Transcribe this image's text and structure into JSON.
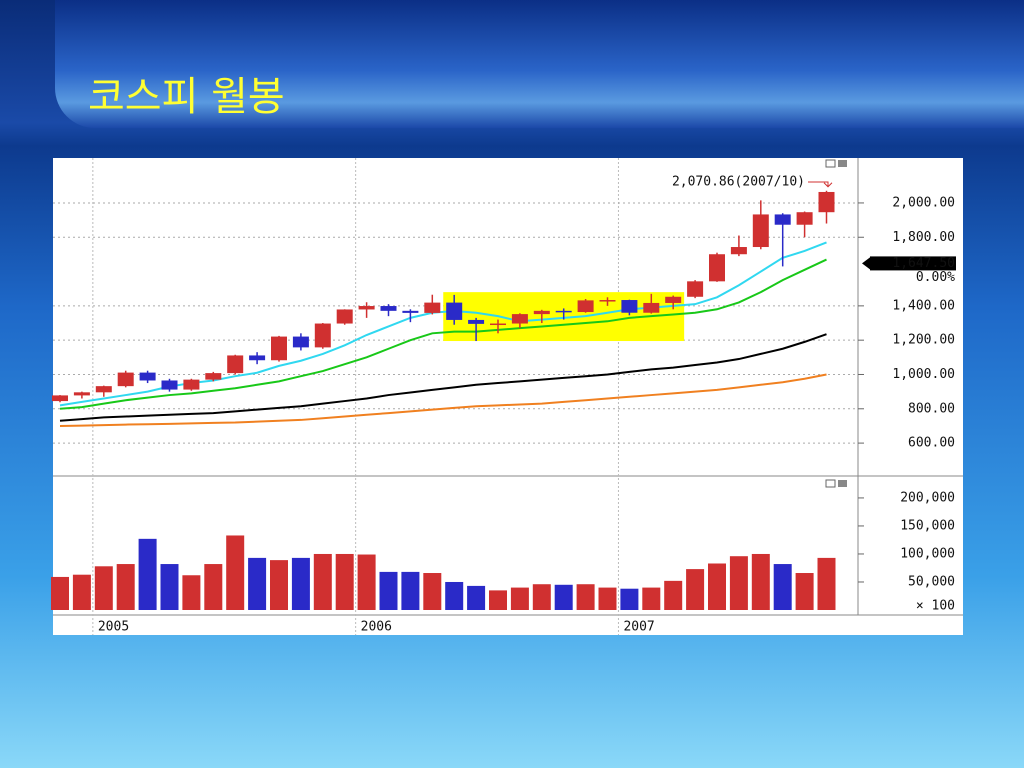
{
  "slide_title": "코스피 월봉",
  "chart_data": [
    {
      "type": "candlestick",
      "categories": [
        null,
        null,
        "2005",
        null,
        null,
        null,
        null,
        null,
        null,
        null,
        null,
        null,
        null,
        null,
        "2006",
        null,
        null,
        null,
        null,
        null,
        null,
        null,
        null,
        null,
        null,
        null,
        "2007",
        null,
        null,
        null,
        null,
        null,
        null,
        null,
        null,
        null
      ],
      "open": [
        845,
        878,
        896,
        932,
        1011,
        965,
        912,
        970,
        1008,
        1111,
        1083,
        1221,
        1158,
        1297,
        1379,
        1399,
        1371,
        1359,
        1419,
        1318,
        1295,
        1297,
        1352,
        1371,
        1364,
        1432,
        1434,
        1360,
        1417,
        1453,
        1543,
        1701,
        1743,
        1933,
        1873,
        1946
      ],
      "high": [
        880,
        900,
        935,
        1022,
        1022,
        975,
        975,
        1015,
        1115,
        1130,
        1225,
        1240,
        1300,
        1380,
        1421,
        1410,
        1380,
        1465,
        1464,
        1330,
        1320,
        1357,
        1377,
        1385,
        1440,
        1450,
        1436,
        1470,
        1460,
        1550,
        1710,
        1810,
        2015,
        1940,
        1950,
        2070.86
      ],
      "low": [
        838,
        860,
        870,
        925,
        950,
        900,
        905,
        960,
        1000,
        1060,
        1075,
        1140,
        1150,
        1290,
        1330,
        1340,
        1305,
        1350,
        1290,
        1195,
        1240,
        1270,
        1300,
        1320,
        1360,
        1400,
        1345,
        1355,
        1380,
        1445,
        1540,
        1690,
        1730,
        1630,
        1800,
        1880
      ],
      "close": [
        878,
        896,
        932,
        1011,
        965,
        912,
        970,
        1008,
        1111,
        1083,
        1221,
        1158,
        1297,
        1379,
        1399,
        1371,
        1359,
        1419,
        1318,
        1295,
        1297,
        1352,
        1371,
        1364,
        1432,
        1434,
        1360,
        1417,
        1453,
        1543,
        1701,
        1743,
        1933,
        1873,
        1946,
        2064
      ],
      "up_color": "#d03030",
      "down_color": "#2a2ac8",
      "series": [
        {
          "color": "#30d8f0",
          "values": [
            820,
            840,
            860,
            880,
            900,
            930,
            950,
            965,
            990,
            1010,
            1050,
            1080,
            1120,
            1170,
            1230,
            1280,
            1330,
            1360,
            1370,
            1360,
            1340,
            1310,
            1320,
            1330,
            1340,
            1360,
            1380,
            1390,
            1400,
            1410,
            1450,
            1520,
            1600,
            1680,
            1720,
            1770
          ]
        },
        {
          "color": "#18c818",
          "values": [
            800,
            810,
            830,
            850,
            865,
            880,
            890,
            905,
            920,
            940,
            960,
            990,
            1020,
            1060,
            1100,
            1150,
            1200,
            1240,
            1250,
            1250,
            1260,
            1270,
            1280,
            1290,
            1300,
            1310,
            1330,
            1340,
            1350,
            1360,
            1380,
            1420,
            1480,
            1550,
            1610,
            1670
          ]
        },
        {
          "color": "#000000",
          "values": [
            730,
            740,
            750,
            755,
            760,
            765,
            770,
            775,
            785,
            795,
            805,
            815,
            830,
            845,
            860,
            880,
            895,
            910,
            925,
            940,
            950,
            960,
            970,
            980,
            990,
            1000,
            1015,
            1030,
            1040,
            1055,
            1070,
            1090,
            1120,
            1150,
            1190,
            1235
          ]
        },
        {
          "color": "#f08020",
          "values": [
            700,
            702,
            705,
            708,
            710,
            712,
            715,
            718,
            720,
            725,
            730,
            735,
            745,
            755,
            765,
            775,
            785,
            795,
            805,
            815,
            820,
            825,
            830,
            840,
            850,
            860,
            870,
            880,
            890,
            900,
            910,
            925,
            940,
            955,
            975,
            1000
          ]
        }
      ],
      "ylim": [
        414,
        2262
      ],
      "yticks": [
        {
          "value": 600,
          "label": "600.00"
        },
        {
          "value": 800,
          "label": "800.00"
        },
        {
          "value": 1000,
          "label": "1,000.00"
        },
        {
          "value": 1200,
          "label": "1,200.00"
        },
        {
          "value": 1400,
          "label": "1,400.00"
        },
        {
          "value": 1800,
          "label": "1,800.00"
        },
        {
          "value": 2000,
          "label": "2,000.00"
        }
      ],
      "grid": true,
      "high_annotation": "2,070.86(2007/10)",
      "current_price": {
        "value": 1647.5,
        "label": "1,647.50"
      },
      "change_label": "0.00%",
      "highlight": {
        "from": 18,
        "to": 28,
        "low": 1195,
        "high": 1480,
        "color": "#ffff00"
      }
    },
    {
      "type": "bar",
      "values": [
        59000,
        63000,
        78000,
        82000,
        127000,
        82000,
        62000,
        82000,
        133000,
        93000,
        89000,
        93000,
        100000,
        100000,
        99000,
        68000,
        68000,
        66000,
        50000,
        43000,
        35000,
        40000,
        46000,
        45000,
        46000,
        40000,
        38000,
        40000,
        52000,
        73000,
        83000,
        96000,
        100000,
        82000,
        66000,
        93000
      ],
      "ylim": [
        0,
        232000
      ],
      "yticks": [
        {
          "value": 50000,
          "label": "50,000"
        },
        {
          "value": 100000,
          "label": "100,000"
        },
        {
          "value": 150000,
          "label": "150,000"
        },
        {
          "value": 200000,
          "label": "200,000"
        }
      ],
      "unit_label": "× 100"
    }
  ]
}
